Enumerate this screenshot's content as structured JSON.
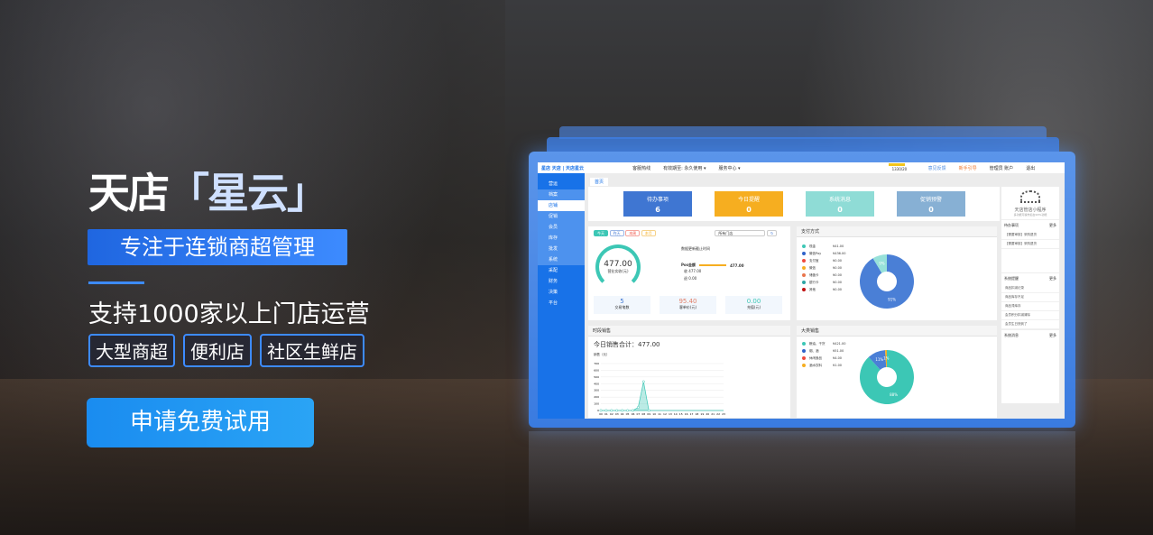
{
  "hero": {
    "title_a": "天店",
    "title_b": "「星云」",
    "slogan": "专注于连锁商超管理",
    "subtitle": "支持1000家以上门店运营",
    "tags": [
      "大型商超",
      "便利店",
      "社区生鲜店"
    ],
    "cta": "申请免费试用",
    "accent": "#2f7cf6"
  },
  "dashboard": {
    "topbar": {
      "logo": "星店 天店 | 天店星云",
      "hotline": "客服热线",
      "validity": "有效期至: 永久使用 ▾",
      "service": "服务中心 ▾",
      "progress_text": "1330/20",
      "progress": 0.6,
      "feedback": "意见反馈",
      "guide": "新手引导",
      "user": "管理员 账户",
      "logout": "退出"
    },
    "sidebar": {
      "groups": [
        {
          "label": "营运",
          "items": [
            "档案",
            "店铺",
            "促销",
            "会员",
            "库存",
            "批发",
            "系统"
          ],
          "selected": "店铺"
        },
        {
          "label": "采配"
        },
        {
          "label": "财务"
        },
        {
          "label": "决策"
        },
        {
          "label": "平台"
        }
      ]
    },
    "tab": "首页",
    "kpis": [
      {
        "label": "待办事项",
        "value": "6",
        "color": "#3f76d2"
      },
      {
        "label": "今日提醒",
        "value": "0",
        "color": "#f6ae20"
      },
      {
        "label": "系统消息",
        "value": "0",
        "color": "#8fdcd6"
      },
      {
        "label": "促销预警",
        "value": "0",
        "color": "#87b0d4"
      }
    ],
    "overview": {
      "buttons": [
        "今天",
        "昨天",
        "本周",
        "本月"
      ],
      "store_select": "所有门店",
      "gauge_value": "477.00",
      "gauge_label": "营业实收(元)",
      "note": "数据更新截止时间",
      "pos_label": "Pos金额",
      "pos_value": "477.00",
      "in_label": "收",
      "in_value": "477.00",
      "out_label": "退",
      "out_value": "0.00",
      "stats": [
        {
          "value": "5",
          "label": "交易笔数",
          "color": "#3f76d2"
        },
        {
          "value": "95.40",
          "label": "客单价(元)",
          "color": "#e0806a"
        },
        {
          "value": "0.00",
          "label": "充值(元)",
          "color": "#3cc7b5"
        }
      ]
    },
    "payment": {
      "title": "支付方式",
      "items": [
        {
          "name": "现金",
          "amount": "¥41.00",
          "color": "#3cc7b5"
        },
        {
          "name": "微信Pay",
          "amount": "¥436.00",
          "color": "#2f62c9"
        },
        {
          "name": "支付宝",
          "amount": "¥0.00",
          "color": "#f04a3c"
        },
        {
          "name": "微信",
          "amount": "¥0.00",
          "color": "#f6ae20"
        },
        {
          "name": "储值卡",
          "amount": "¥0.00",
          "color": "#e9754c"
        },
        {
          "name": "银行卡",
          "amount": "¥0.00",
          "color": "#2ea5a5"
        },
        {
          "name": "其他",
          "amount": "¥0.00",
          "color": "#c01010"
        }
      ],
      "slices": [
        {
          "label": "91%",
          "value": 436,
          "color": "#4a7fd6"
        },
        {
          "label": "9%",
          "value": 41,
          "color": "#97e1d9"
        }
      ]
    },
    "hourly": {
      "title": "时段销售",
      "total": "今日销售合计：477.00",
      "ylabel": "销售（元）",
      "ylim": [
        0,
        700
      ],
      "yticks": [
        0,
        100,
        200,
        300,
        400,
        500,
        600,
        700
      ],
      "x": [
        "00",
        "01",
        "02",
        "03",
        "04",
        "05",
        "06",
        "07",
        "08",
        "09",
        "10",
        "11",
        "12",
        "13",
        "14",
        "15",
        "16",
        "17",
        "18",
        "19",
        "20",
        "21",
        "22",
        "23"
      ],
      "values": [
        0,
        0,
        0,
        0,
        0,
        0,
        0,
        47,
        430,
        0,
        0,
        0,
        0,
        0,
        0,
        0,
        0,
        0,
        0,
        0,
        0,
        0,
        0,
        0
      ]
    },
    "category": {
      "title": "大类销售",
      "items": [
        {
          "name": "粮油、干货",
          "amount": "¥421.00",
          "color": "#3cc7b5"
        },
        {
          "name": "烟、酒",
          "amount": "¥51.00",
          "color": "#2f62c9"
        },
        {
          "name": "休闲食品",
          "amount": "¥4.00",
          "color": "#f04a3c"
        },
        {
          "name": "酒水饮料",
          "amount": "¥1.00",
          "color": "#f6ae20"
        }
      ],
      "slices": [
        {
          "label": "88%",
          "value": 421,
          "color": "#3cc7b5"
        },
        {
          "label": "11%",
          "value": 51,
          "color": "#4a7fd6"
        },
        {
          "label": "1%",
          "value": 5,
          "color": "#f6ae20"
        }
      ]
    },
    "right": {
      "mini_title": "天店管店小程序",
      "mini_sub": "多功能可操作后台90%功能",
      "todo_title": "待办事项",
      "more": "更多",
      "todos": [
        "【需要审核】采购退货",
        "【需要审核】采购退货"
      ],
      "remind_title": "系统提醒",
      "reminds": [
        "商品扣减记录",
        "商品库存不足",
        "商品滞库存",
        "会员积分扣减清除",
        "会员生日快到了"
      ],
      "msg_title": "系统消息"
    }
  }
}
